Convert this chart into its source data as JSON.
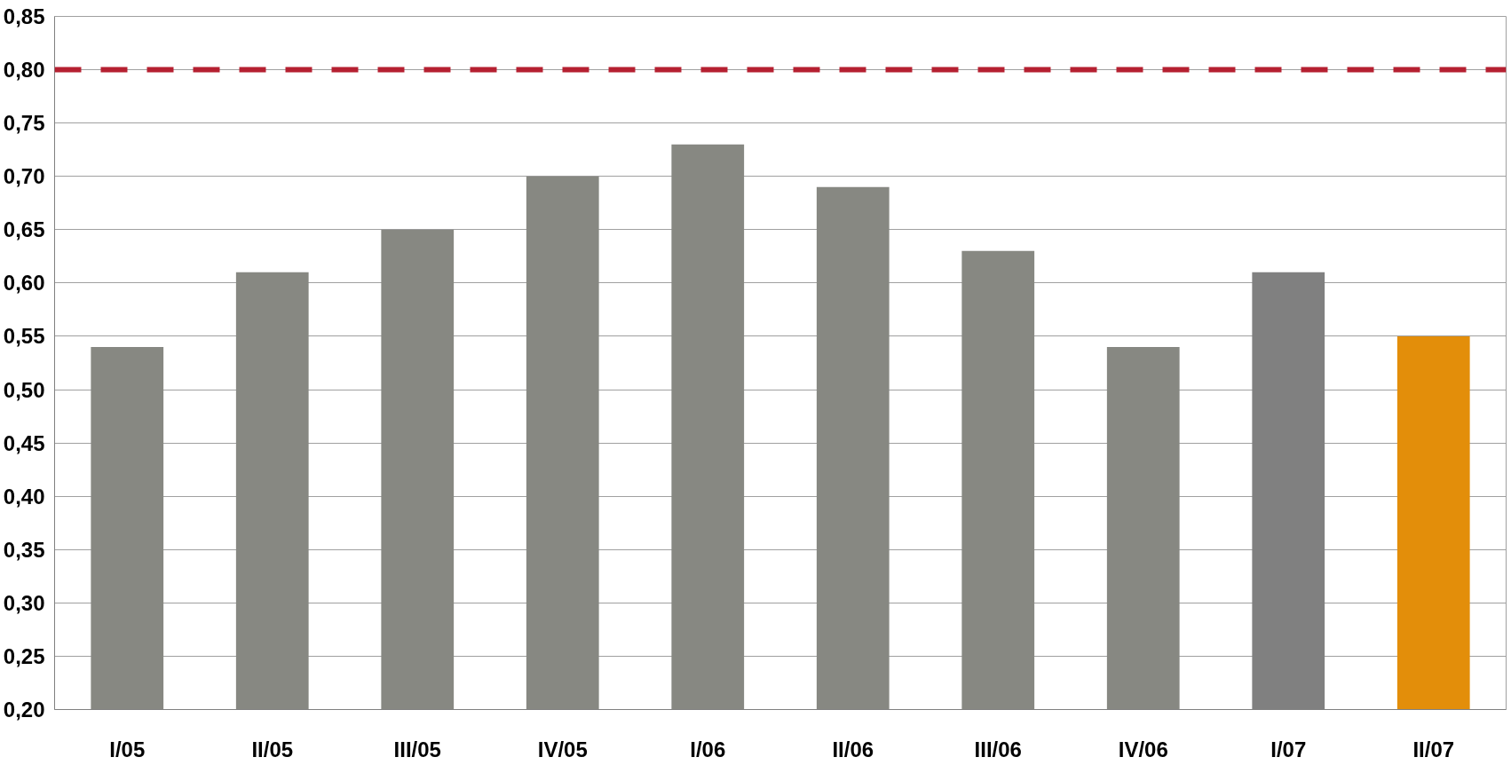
{
  "chart_data": {
    "type": "bar",
    "categories": [
      "I/05",
      "II/05",
      "III/05",
      "IV/05",
      "I/06",
      "II/06",
      "III/06",
      "IV/06",
      "I/07",
      "II/07"
    ],
    "values": [
      0.54,
      0.61,
      0.65,
      0.7,
      0.73,
      0.69,
      0.63,
      0.54,
      0.61,
      0.55
    ],
    "colors": [
      "#878882",
      "#878882",
      "#878882",
      "#878882",
      "#878882",
      "#878882",
      "#878882",
      "#878882",
      "#808080",
      "#e38e0a"
    ],
    "ylim": [
      0.2,
      0.85
    ],
    "yticks": [
      {
        "value": 0.2,
        "label": "0,20"
      },
      {
        "value": 0.25,
        "label": "0,25"
      },
      {
        "value": 0.3,
        "label": "0,30"
      },
      {
        "value": 0.35,
        "label": "0,35"
      },
      {
        "value": 0.4,
        "label": "0,40"
      },
      {
        "value": 0.45,
        "label": "0,45"
      },
      {
        "value": 0.5,
        "label": "0,50"
      },
      {
        "value": 0.55,
        "label": "0,55"
      },
      {
        "value": 0.6,
        "label": "0,60"
      },
      {
        "value": 0.65,
        "label": "0,65"
      },
      {
        "value": 0.7,
        "label": "0,70"
      },
      {
        "value": 0.75,
        "label": "0,75"
      },
      {
        "value": 0.8,
        "label": "0,80"
      },
      {
        "value": 0.85,
        "label": "0,85"
      }
    ],
    "grid": "y",
    "ref_lines": [
      {
        "axis": "y",
        "value": 0.8,
        "color": "#b52031",
        "line_style": "dashed"
      }
    ]
  }
}
